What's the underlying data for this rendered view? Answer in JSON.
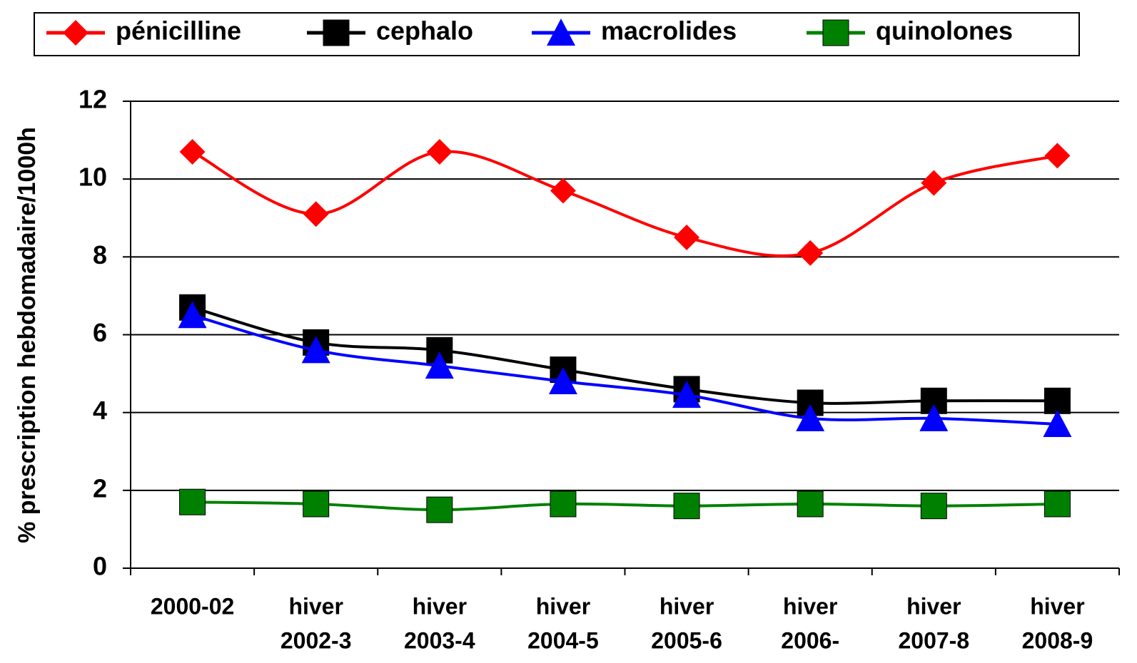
{
  "chart_data": {
    "type": "line",
    "y_label": "% prescription hebdomadaire/1000h",
    "categories": [
      [
        "2000-02"
      ],
      [
        "hiver",
        "2002-3"
      ],
      [
        "hiver",
        "2003-4"
      ],
      [
        "hiver",
        "2004-5"
      ],
      [
        "hiver",
        "2005-6"
      ],
      [
        "hiver",
        "2006-"
      ],
      [
        "hiver",
        "2007-8"
      ],
      [
        "hiver",
        "2008-9"
      ]
    ],
    "series": [
      {
        "name": "pénicilline",
        "color": "#ff0000",
        "marker": "diamond",
        "values": [
          10.7,
          9.1,
          10.7,
          9.7,
          8.5,
          8.1,
          9.9,
          10.6
        ]
      },
      {
        "name": "cephalo",
        "color": "#000000",
        "marker": "square",
        "values": [
          6.7,
          5.8,
          5.6,
          5.1,
          4.6,
          4.25,
          4.3,
          4.3
        ]
      },
      {
        "name": "macrolides",
        "color": "#0000ff",
        "marker": "triangle",
        "values": [
          6.5,
          5.6,
          5.2,
          4.8,
          4.45,
          3.85,
          3.85,
          3.7
        ]
      },
      {
        "name": "quinolones",
        "color": "#008000",
        "marker": "square",
        "values": [
          1.7,
          1.65,
          1.5,
          1.65,
          1.6,
          1.65,
          1.6,
          1.65
        ]
      }
    ],
    "ylim": [
      0,
      12
    ],
    "yticks": [
      0,
      2,
      4,
      6,
      8,
      10,
      12
    ],
    "grid": true,
    "smooth": true,
    "legend": "top"
  }
}
